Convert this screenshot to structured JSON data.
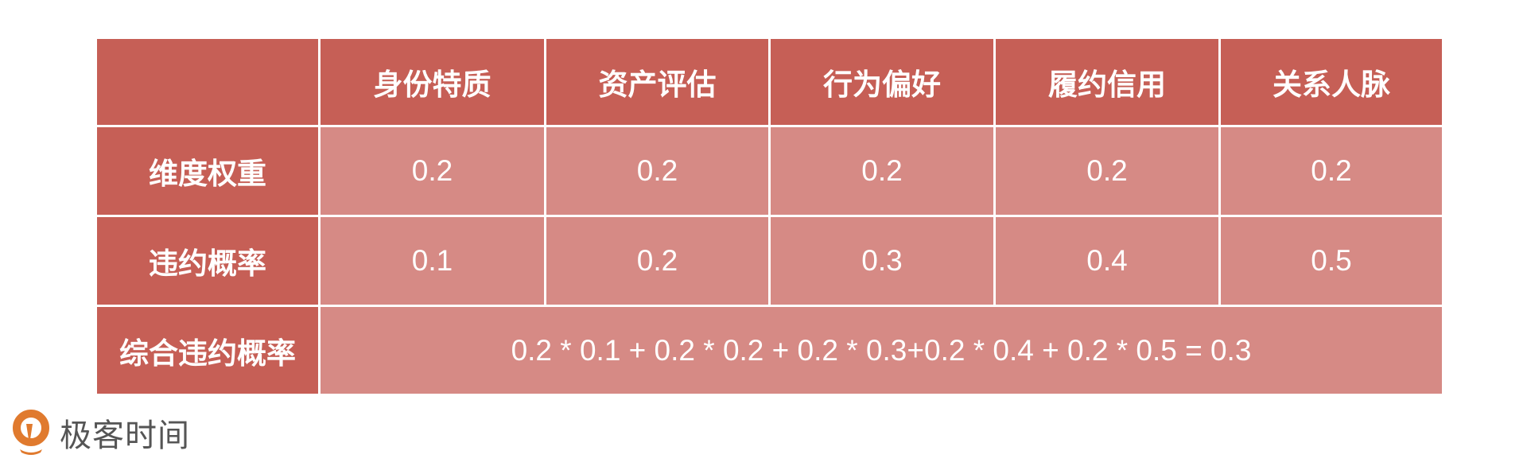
{
  "table": {
    "headers": [
      "",
      "身份特质",
      "资产评估",
      "行为偏好",
      "履约信用",
      "关系人脉"
    ],
    "rows": [
      {
        "label": "维度权重",
        "values": [
          "0.2",
          "0.2",
          "0.2",
          "0.2",
          "0.2"
        ]
      },
      {
        "label": "违约概率",
        "values": [
          "0.1",
          "0.2",
          "0.3",
          "0.4",
          "0.5"
        ]
      }
    ],
    "total": {
      "label": "综合违约概率",
      "formula": "0.2 * 0.1 + 0.2 * 0.2 + 0.2 * 0.3+0.2 * 0.4 + 0.2 * 0.5 = 0.3"
    }
  },
  "logo": {
    "text": "极客时间"
  },
  "colors": {
    "header": "#C65F56",
    "cell": "#D68A85",
    "logo_orange": "#E07A2E"
  }
}
